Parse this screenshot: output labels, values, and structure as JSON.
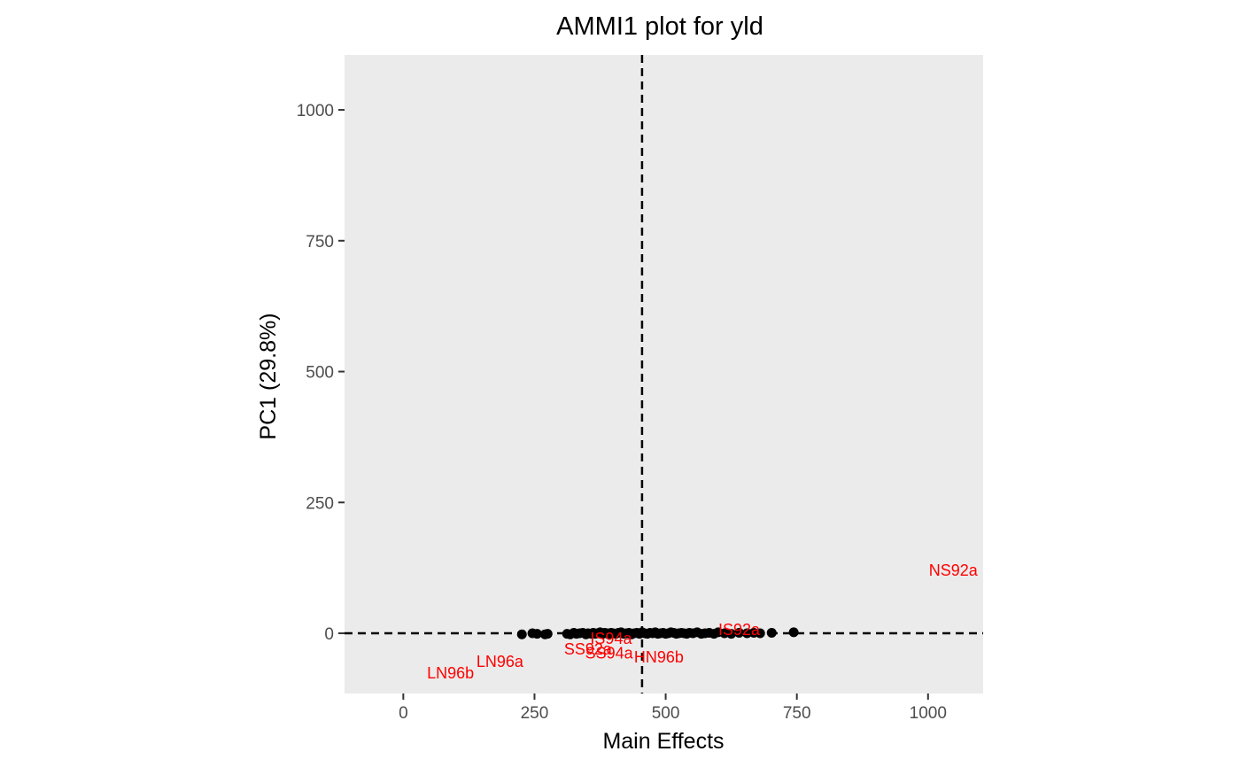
{
  "chart_data": {
    "type": "scatter",
    "title": "AMMI1 plot for yld",
    "xlabel": "Main Effects",
    "ylabel": "PC1 (29.8%)",
    "xlim": [
      -112,
      1105
    ],
    "ylim": [
      -115,
      1105
    ],
    "xticks": [
      0,
      250,
      500,
      750,
      1000
    ],
    "yticks": [
      0,
      250,
      500,
      750,
      1000
    ],
    "panel_background": "#ebebeb",
    "grid": false,
    "reference_lines": {
      "x": 455,
      "y": 0,
      "style": "dashed"
    },
    "genotype_color": "#000000",
    "environment_color": "#ff0000",
    "genotypes": {
      "x": [
        226,
        246,
        255,
        270,
        275,
        312,
        318,
        325,
        330,
        336,
        342,
        348,
        352,
        358,
        362,
        366,
        370,
        375,
        380,
        384,
        388,
        392,
        396,
        400,
        405,
        410,
        415,
        420,
        425,
        430,
        435,
        440,
        445,
        450,
        455,
        460,
        465,
        470,
        475,
        480,
        485,
        490,
        495,
        500,
        505,
        510,
        515,
        520,
        525,
        530,
        535,
        540,
        545,
        552,
        560,
        568,
        575,
        583,
        592,
        600,
        612,
        625,
        640,
        655,
        668,
        680,
        702,
        744
      ],
      "y": [
        -2,
        0,
        -1,
        -2,
        -1,
        -1,
        -2,
        1,
        -1,
        0,
        1,
        -2,
        0,
        -1,
        1,
        -1,
        0,
        2,
        -1,
        1,
        0,
        -2,
        1,
        0,
        -1,
        1,
        2,
        -1,
        0,
        1,
        -2,
        0,
        1,
        -1,
        2,
        0,
        -1,
        1,
        0,
        2,
        -1,
        0,
        1,
        -1,
        0,
        2,
        1,
        -1,
        0,
        1,
        0,
        -1,
        1,
        0,
        2,
        -1,
        0,
        1,
        -1,
        2,
        0,
        -1,
        1,
        0,
        1,
        0,
        1,
        2
      ]
    },
    "environments": [
      {
        "label": "NS92a",
        "x": 1048,
        "y": 120
      },
      {
        "label": "IS92a",
        "x": 640,
        "y": 7
      },
      {
        "label": "IS94a",
        "x": 396,
        "y": -10
      },
      {
        "label": "SS92a",
        "x": 352,
        "y": -30
      },
      {
        "label": "SS94a",
        "x": 392,
        "y": -38
      },
      {
        "label": "HN96b",
        "x": 487,
        "y": -46
      },
      {
        "label": "LN96a",
        "x": 184,
        "y": -54
      },
      {
        "label": "LN96b",
        "x": 90,
        "y": -76
      }
    ]
  }
}
